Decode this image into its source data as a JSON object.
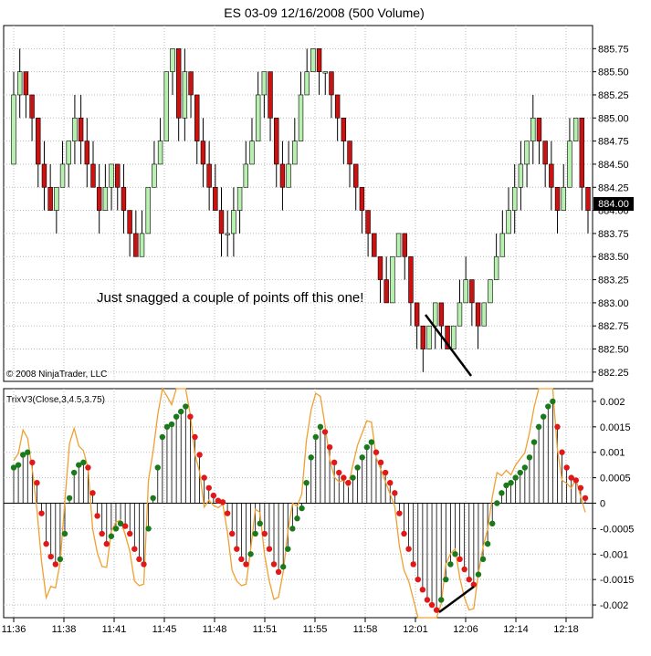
{
  "chart_data": [
    {
      "type": "candlestick",
      "title": "ES 03-09  12/16/2008 (500 Volume)",
      "copyright": "© 2008 NinjaTrader, LLC",
      "annotation": "Just snagged a couple of points off this one!",
      "ylim": [
        882.15,
        886.0
      ],
      "yticks": [
        "885.75",
        "885.50",
        "885.25",
        "885.00",
        "884.75",
        "884.50",
        "884.25",
        "884.00",
        "883.75",
        "883.50",
        "883.25",
        "883.00",
        "882.75",
        "882.50",
        "882.25"
      ],
      "last_price": "884.00",
      "colors": {
        "up": "#b8f0b0",
        "down": "#cc1111",
        "wick": "#000000",
        "grid": "#bbbbbb"
      },
      "bars": [
        [
          884.5,
          885.25,
          885.5,
          884.5
        ],
        [
          885.25,
          885.5,
          885.75,
          885.0
        ],
        [
          885.5,
          885.25,
          885.5,
          885.0
        ],
        [
          885.25,
          885.0,
          885.25,
          884.75
        ],
        [
          885.0,
          884.5,
          885.0,
          884.25
        ],
        [
          884.5,
          884.25,
          884.75,
          884.0
        ],
        [
          884.25,
          884.0,
          884.5,
          884.0
        ],
        [
          884.0,
          884.25,
          884.25,
          883.75
        ],
        [
          884.25,
          884.5,
          884.75,
          884.25
        ],
        [
          884.5,
          884.75,
          884.75,
          884.25
        ],
        [
          884.75,
          885.0,
          885.25,
          884.5
        ],
        [
          885.0,
          884.75,
          885.25,
          884.5
        ],
        [
          884.75,
          884.5,
          885.0,
          884.25
        ],
        [
          884.5,
          884.25,
          884.75,
          884.25
        ],
        [
          884.25,
          884.0,
          884.5,
          883.75
        ],
        [
          884.0,
          884.25,
          884.5,
          884.0
        ],
        [
          884.25,
          884.5,
          884.5,
          884.0
        ],
        [
          884.5,
          884.25,
          884.5,
          884.0
        ],
        [
          884.25,
          884.0,
          884.5,
          883.75
        ],
        [
          884.0,
          883.75,
          884.0,
          883.5
        ],
        [
          883.75,
          883.5,
          884.0,
          883.5
        ],
        [
          883.5,
          883.75,
          884.0,
          883.5
        ],
        [
          883.75,
          884.25,
          884.25,
          883.75
        ],
        [
          884.25,
          884.5,
          884.75,
          884.25
        ],
        [
          884.5,
          884.75,
          885.0,
          884.5
        ],
        [
          884.75,
          885.5,
          885.5,
          884.75
        ],
        [
          885.5,
          885.75,
          885.75,
          885.25
        ],
        [
          885.75,
          885.0,
          885.75,
          884.75
        ],
        [
          885.0,
          885.5,
          885.75,
          884.75
        ],
        [
          885.5,
          885.25,
          885.5,
          885.0
        ],
        [
          885.25,
          884.75,
          885.25,
          884.5
        ],
        [
          884.75,
          884.5,
          885.0,
          884.25
        ],
        [
          884.5,
          884.25,
          884.75,
          884.0
        ],
        [
          884.25,
          884.0,
          884.5,
          884.0
        ],
        [
          884.0,
          883.75,
          884.25,
          883.5
        ],
        [
          883.75,
          883.75,
          884.0,
          883.5
        ],
        [
          883.75,
          884.0,
          884.25,
          883.5
        ],
        [
          884.0,
          884.25,
          884.25,
          883.75
        ],
        [
          884.25,
          884.5,
          884.75,
          884.25
        ],
        [
          884.5,
          884.75,
          885.0,
          884.5
        ],
        [
          884.75,
          885.25,
          885.5,
          884.75
        ],
        [
          885.25,
          885.5,
          885.5,
          885.0
        ],
        [
          885.5,
          885.0,
          885.5,
          884.75
        ],
        [
          885.0,
          884.5,
          885.0,
          884.25
        ],
        [
          884.5,
          884.25,
          884.75,
          884.0
        ],
        [
          884.25,
          884.5,
          884.75,
          884.25
        ],
        [
          884.5,
          884.75,
          885.0,
          884.5
        ],
        [
          884.75,
          885.25,
          885.5,
          884.75
        ],
        [
          885.25,
          885.5,
          885.75,
          885.25
        ],
        [
          885.5,
          885.75,
          885.75,
          885.5
        ],
        [
          885.75,
          885.5,
          885.75,
          885.25
        ],
        [
          885.5,
          885.5,
          885.5,
          885.25
        ],
        [
          885.5,
          885.25,
          885.5,
          885.0
        ],
        [
          885.25,
          885.0,
          885.25,
          884.75
        ],
        [
          885.0,
          884.75,
          885.0,
          884.5
        ],
        [
          884.75,
          884.5,
          884.75,
          884.25
        ],
        [
          884.5,
          884.25,
          884.5,
          884.0
        ],
        [
          884.25,
          884.0,
          884.25,
          883.75
        ],
        [
          884.0,
          883.75,
          884.0,
          883.5
        ],
        [
          883.75,
          883.5,
          883.75,
          883.5
        ],
        [
          883.5,
          883.25,
          883.5,
          883.0
        ],
        [
          883.25,
          883.0,
          883.5,
          883.0
        ],
        [
          883.0,
          883.5,
          883.5,
          883.0
        ],
        [
          883.5,
          883.75,
          883.75,
          883.5
        ],
        [
          883.75,
          883.5,
          883.75,
          883.25
        ],
        [
          883.5,
          883.0,
          883.5,
          882.75
        ],
        [
          883.0,
          882.75,
          883.0,
          882.5
        ],
        [
          882.75,
          882.5,
          882.75,
          882.25
        ],
        [
          882.5,
          882.75,
          882.75,
          882.5
        ],
        [
          882.75,
          883.0,
          883.0,
          882.5
        ],
        [
          883.0,
          882.75,
          883.0,
          882.5
        ],
        [
          882.75,
          882.5,
          882.75,
          882.5
        ],
        [
          882.5,
          882.75,
          882.75,
          882.5
        ],
        [
          882.75,
          883.0,
          883.25,
          882.75
        ],
        [
          883.0,
          883.25,
          883.5,
          883.0
        ],
        [
          883.25,
          883.0,
          883.25,
          882.75
        ],
        [
          883.0,
          882.75,
          883.0,
          882.5
        ],
        [
          882.75,
          883.0,
          883.0,
          882.75
        ],
        [
          883.0,
          883.25,
          883.25,
          883.0
        ],
        [
          883.25,
          883.5,
          883.75,
          883.25
        ],
        [
          883.5,
          883.75,
          884.0,
          883.5
        ],
        [
          883.75,
          884.0,
          884.25,
          883.75
        ],
        [
          884.0,
          884.25,
          884.5,
          883.75
        ],
        [
          884.25,
          884.5,
          884.75,
          884.0
        ],
        [
          884.5,
          884.75,
          884.75,
          884.25
        ],
        [
          884.75,
          885.0,
          885.25,
          884.5
        ],
        [
          885.0,
          884.75,
          885.0,
          884.5
        ],
        [
          884.75,
          884.5,
          884.75,
          884.25
        ],
        [
          884.5,
          884.25,
          884.75,
          884.0
        ],
        [
          884.25,
          884.0,
          884.25,
          883.75
        ],
        [
          884.0,
          884.25,
          884.5,
          884.0
        ],
        [
          884.25,
          884.75,
          885.0,
          884.25
        ],
        [
          884.75,
          885.0,
          885.0,
          884.75
        ],
        [
          885.0,
          884.25,
          885.0,
          884.0
        ],
        [
          884.25,
          884.0,
          884.25,
          883.75
        ]
      ]
    },
    {
      "type": "histogram",
      "title": "TrixV3(Close,3,4.5,3.75)",
      "ylim": [
        -0.00225,
        0.00225
      ],
      "yticks": [
        "0.002",
        "0.0015",
        "0.001",
        "0.0005",
        "0",
        "-0.0005",
        "-0.001",
        "-0.0015",
        "-0.002"
      ],
      "xticks": [
        "11:36",
        "11:38",
        "11:41",
        "11:45",
        "11:48",
        "11:51",
        "11:55",
        "11:58",
        "12:01",
        "12:06",
        "12:14",
        "12:18"
      ],
      "colors": {
        "rising": "#1a7a1a",
        "falling": "#e01818",
        "signal": "#f0a030",
        "hist": "#000000"
      },
      "values": [
        0.0007,
        0.00075,
        0.00095,
        0.001,
        0.0008,
        0.0004,
        -0.0002,
        -0.0008,
        -0.00105,
        -0.0012,
        -0.0011,
        -0.0006,
        0.0001,
        0.0006,
        0.00075,
        0.0008,
        0.0007,
        0.0002,
        -0.00025,
        -0.0006,
        -0.0008,
        -0.00065,
        -0.0005,
        -0.0004,
        -0.00045,
        -0.0006,
        -0.0009,
        -0.0011,
        -0.0012,
        -0.0005,
        0.0001,
        0.0007,
        0.0013,
        0.0015,
        0.00155,
        0.0017,
        0.0018,
        0.0019,
        0.0017,
        0.0013,
        0.00095,
        0.0005,
        0.0003,
        0.00015,
        5e-05,
        2e-05,
        -0.0002,
        -0.0006,
        -0.0009,
        -0.0011,
        -0.0012,
        -0.001,
        -0.0006,
        -0.0004,
        -0.0006,
        -0.0009,
        -0.0012,
        -0.00135,
        -0.00125,
        -0.0009,
        -0.0005,
        -0.0003,
        -0.0001,
        0.0004,
        0.0009,
        0.0013,
        0.0015,
        0.0014,
        0.0011,
        0.0008,
        0.0006,
        0.0005,
        0.0004,
        0.0005,
        0.0007,
        0.0009,
        0.0011,
        0.0012,
        0.001,
        0.0008,
        0.0006,
        0.0004,
        0.0002,
        -0.0002,
        -0.0006,
        -0.0009,
        -0.0012,
        -0.0015,
        -0.0017,
        -0.0019,
        -0.002,
        -0.0021,
        -0.0019,
        -0.0015,
        -0.0012,
        -0.001,
        -0.0011,
        -0.0013,
        -0.0015,
        -0.0016,
        -0.0014,
        -0.0011,
        -0.0008,
        -0.0004,
        0,
        0.0002,
        0.00035,
        0.0004,
        0.0005,
        0.0006,
        0.0007,
        0.0009,
        0.0012,
        0.0015,
        0.0017,
        0.0019,
        0.002,
        0.0015,
        0.001,
        0.0007,
        0.0005,
        0.00045,
        0.0003,
        0.0001
      ]
    }
  ]
}
